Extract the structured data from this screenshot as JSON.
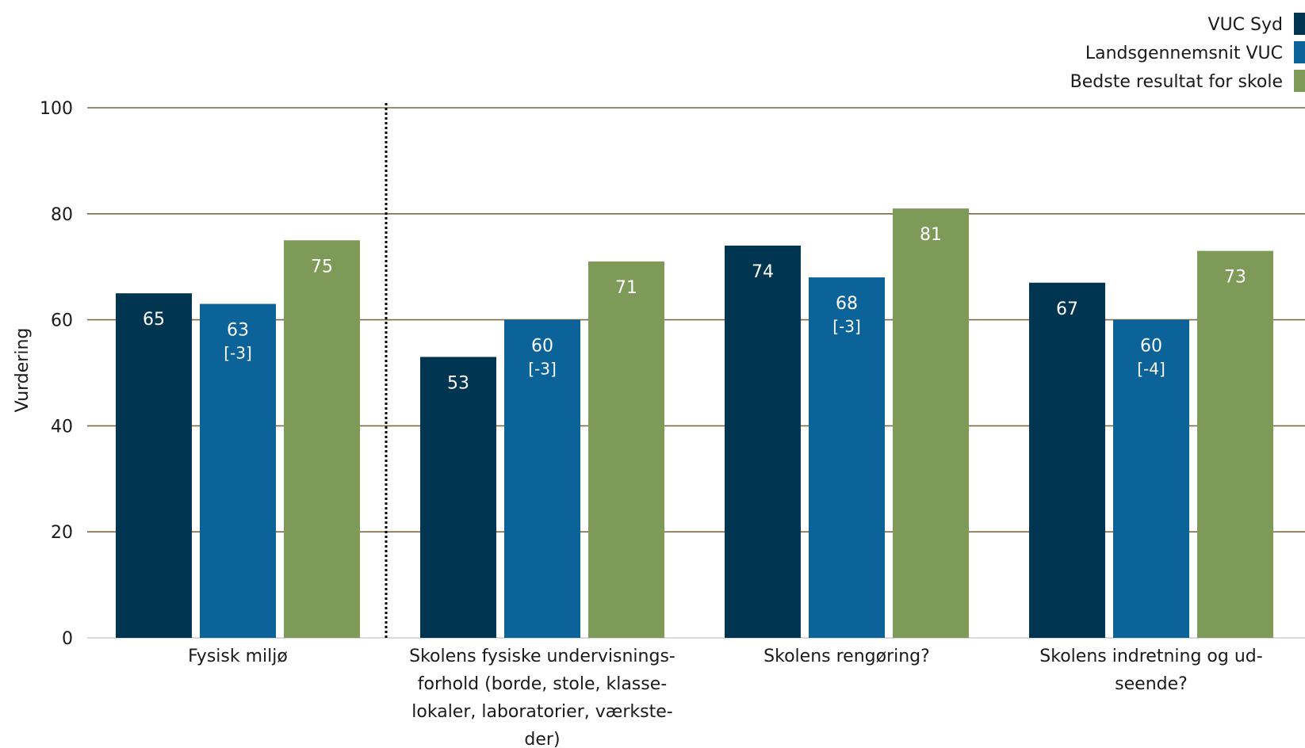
{
  "chart_data": {
    "type": "bar",
    "ylabel": "Vurdering",
    "ylim": [
      0,
      100
    ],
    "yticks": [
      "0",
      "20",
      "40",
      "60",
      "80",
      "100"
    ],
    "grid": true,
    "legend_position": "top-right",
    "categories": [
      [
        "Fysisk miljø"
      ],
      [
        "Skolens fysiske undervisnings-",
        "forhold (borde, stole, klasse-",
        "lokaler, laboratorier, værkste-",
        "der)"
      ],
      [
        "Skolens rengøring?"
      ],
      [
        "Skolens indretning og ud-",
        "seende?"
      ]
    ],
    "series": [
      {
        "name": "VUC Syd",
        "color": "#003552",
        "values": [
          65,
          53,
          74,
          67
        ],
        "labels": [
          "65",
          "53",
          "74",
          "67"
        ]
      },
      {
        "name": "Landsgennemsnit VUC",
        "color": "#0b6399",
        "values": [
          63,
          60,
          68,
          60
        ],
        "labels": [
          "63",
          "60",
          "68",
          "60"
        ],
        "differences": [
          "[-3]",
          "[-3]",
          "[-3]",
          "[-4]"
        ]
      },
      {
        "name": "Bedste resultat for skole",
        "color": "#7e9a58",
        "values": [
          75,
          71,
          81,
          73
        ],
        "labels": [
          "75",
          "71",
          "81",
          "73"
        ]
      }
    ],
    "gridline_color": "#7a6a3e",
    "divider_after_category": 0
  }
}
